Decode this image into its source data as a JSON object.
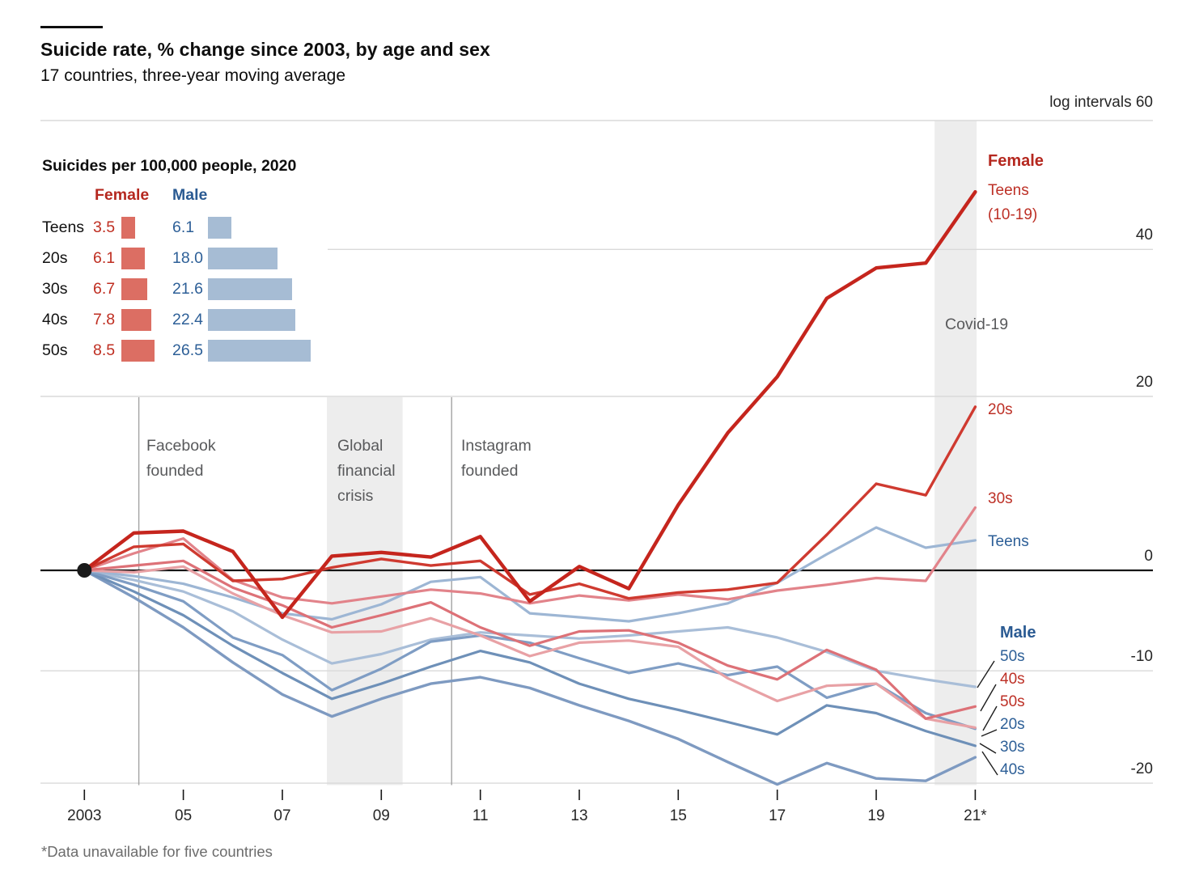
{
  "header": {
    "title": "Suicide rate, % change since 2003, by age and sex",
    "subtitle": "17 countries, three-year moving average"
  },
  "axis_note": "log intervals 60",
  "footnote": "*Data unavailable for five countries",
  "legend": {
    "title": "Suicides per 100,000 people, 2020",
    "col_female": "Female",
    "col_male": "Male",
    "rows": [
      {
        "label": "Teens",
        "female": "3.5",
        "male": "6.1"
      },
      {
        "label": "20s",
        "female": "6.1",
        "male": "18.0"
      },
      {
        "label": "30s",
        "female": "6.7",
        "male": "21.6"
      },
      {
        "label": "40s",
        "female": "7.8",
        "male": "22.4"
      },
      {
        "label": "50s",
        "female": "8.5",
        "male": "26.5"
      }
    ],
    "female_bar_color": "#dc6e63",
    "male_bar_color": "#a6bcd4"
  },
  "annotations": {
    "facebook": "Facebook founded",
    "financial_crisis": "Global financial crisis",
    "instagram": "Instagram founded",
    "covid": "Covid-19"
  },
  "right_labels": {
    "female_header": "Female",
    "female_teens_line1": "Teens",
    "female_teens_line2": "(10-19)",
    "female_20s": "20s",
    "female_30s": "30s",
    "male_teens": "Teens",
    "male_header": "Male",
    "end_stack": [
      {
        "label": "50s",
        "group": "male"
      },
      {
        "label": "40s",
        "group": "female"
      },
      {
        "label": "50s",
        "group": "female"
      },
      {
        "label": "20s",
        "group": "male"
      },
      {
        "label": "30s",
        "group": "male"
      },
      {
        "label": "40s",
        "group": "male"
      }
    ]
  },
  "y_axis": {
    "tick_values": [
      40,
      20,
      0,
      -10,
      -20
    ],
    "tick_labels": [
      "40",
      "20",
      "0",
      "-10",
      "-20"
    ],
    "top_value": 60
  },
  "x_axis": {
    "tick_years": [
      2003,
      2005,
      2007,
      2009,
      2011,
      2013,
      2015,
      2017,
      2019,
      2021
    ],
    "labels": [
      "2003",
      "05",
      "07",
      "09",
      "11",
      "13",
      "15",
      "17",
      "19",
      "21*"
    ]
  },
  "chart_data": {
    "type": "line",
    "title": "Suicide rate, % change since 2003, by age and sex",
    "subtitle": "17 countries, three-year moving average",
    "ylabel": "% change since 2003 (log intervals)",
    "scale": "log",
    "ylim": [
      -21,
      60
    ],
    "grid": true,
    "x": [
      2003,
      2004,
      2005,
      2006,
      2007,
      2008,
      2009,
      2010,
      2011,
      2012,
      2013,
      2014,
      2015,
      2016,
      2017,
      2018,
      2019,
      2020,
      2021
    ],
    "series": [
      {
        "name": "Female teens (10-19)",
        "color": "#c5251d",
        "width": 4.4,
        "values": [
          0,
          4,
          4.2,
          2,
          -4.8,
          1.5,
          1.9,
          1.4,
          3.6,
          -3.2,
          0.4,
          -1.9,
          7.1,
          15.5,
          22.5,
          33,
          37.3,
          38,
          48.7
        ]
      },
      {
        "name": "Female 20s",
        "color": "#cf3a30",
        "width": 3.4,
        "values": [
          0,
          2.5,
          2.8,
          -1.1,
          -0.9,
          0.3,
          1.2,
          0.5,
          1.0,
          -2.5,
          -1.4,
          -2.9,
          -2.3,
          -2.0,
          -1.3,
          3.8,
          9.5,
          8.2,
          18.7
        ]
      },
      {
        "name": "Female 30s",
        "color": "#e2838a",
        "width": 3.2,
        "values": [
          0,
          1.8,
          3.4,
          -1.0,
          -2.8,
          -3.4,
          -2.7,
          -2.0,
          -2.4,
          -3.4,
          -2.6,
          -3.1,
          -2.5,
          -3.0,
          -2.1,
          -1.5,
          -0.8,
          -1.1,
          6.8
        ]
      },
      {
        "name": "Female 40s",
        "color": "#dd7177",
        "width": 3.2,
        "values": [
          0,
          0.5,
          1.0,
          -1.8,
          -3.6,
          -5.8,
          -4.6,
          -3.3,
          -5.8,
          -7.6,
          -6.2,
          -6.1,
          -7.3,
          -9.5,
          -10.8,
          -8.0,
          -9.9,
          -14.4,
          -13.3
        ]
      },
      {
        "name": "Female 50s",
        "color": "#e8a1a5",
        "width": 3.2,
        "values": [
          0,
          -0.2,
          0.4,
          -2.4,
          -4.6,
          -6.3,
          -6.2,
          -4.9,
          -6.6,
          -8.6,
          -7.3,
          -7.1,
          -7.7,
          -10.7,
          -12.8,
          -11.4,
          -11.2,
          -14.4,
          -15.2
        ]
      },
      {
        "name": "Male teens (10-19)",
        "color": "#9db6d4",
        "width": 3.2,
        "values": [
          0,
          -0.6,
          -1.4,
          -2.8,
          -4.4,
          -5.0,
          -3.5,
          -1.2,
          -0.7,
          -4.4,
          -4.8,
          -5.2,
          -4.4,
          -3.4,
          -1.3,
          1.7,
          4.6,
          2.4,
          3.2
        ]
      },
      {
        "name": "Male 20s",
        "color": "#7f9dc4",
        "width": 3.2,
        "values": [
          0,
          -1.5,
          -3.2,
          -6.8,
          -8.5,
          -11.8,
          -9.8,
          -7.2,
          -6.6,
          -7.3,
          -8.8,
          -10.2,
          -9.3,
          -10.4,
          -9.6,
          -12.5,
          -11.2,
          -13.9,
          -15.3
        ]
      },
      {
        "name": "Male 30s",
        "color": "#6e90b8",
        "width": 3.2,
        "values": [
          0,
          -2.2,
          -4.6,
          -7.6,
          -10.2,
          -12.6,
          -11.2,
          -9.6,
          -8.1,
          -9.2,
          -11.2,
          -12.6,
          -13.6,
          -14.7,
          -15.8,
          -13.2,
          -13.9,
          -15.5,
          -16.8
        ]
      },
      {
        "name": "Male 40s",
        "color": "#7e9ac1",
        "width": 3.4,
        "values": [
          0,
          -2.8,
          -5.8,
          -9.2,
          -12.2,
          -14.2,
          -12.6,
          -11.2,
          -10.6,
          -11.6,
          -13.2,
          -14.6,
          -16.2,
          -18.2,
          -20.1,
          -18.3,
          -19.6,
          -19.8,
          -17.8
        ]
      },
      {
        "name": "Male 50s",
        "color": "#a9bed8",
        "width": 3.2,
        "values": [
          0,
          -1.0,
          -2.2,
          -4.2,
          -7.0,
          -9.3,
          -8.4,
          -7.0,
          -6.3,
          -6.6,
          -6.9,
          -6.6,
          -6.2,
          -5.8,
          -6.8,
          -8.2,
          -10.0,
          -10.8,
          -11.5
        ]
      }
    ],
    "events": [
      {
        "type": "line",
        "label": "Facebook founded",
        "year": 2004.1
      },
      {
        "type": "band",
        "label": "Global financial crisis",
        "start": 2007.9,
        "end": 2009.43
      },
      {
        "type": "line",
        "label": "Instagram founded",
        "year": 2010.42
      },
      {
        "type": "band",
        "label": "Covid-19",
        "start": 2020.18,
        "end": 2021.03,
        "full_height": true
      }
    ],
    "origin_marker": {
      "x": 2003,
      "y": 0
    }
  }
}
